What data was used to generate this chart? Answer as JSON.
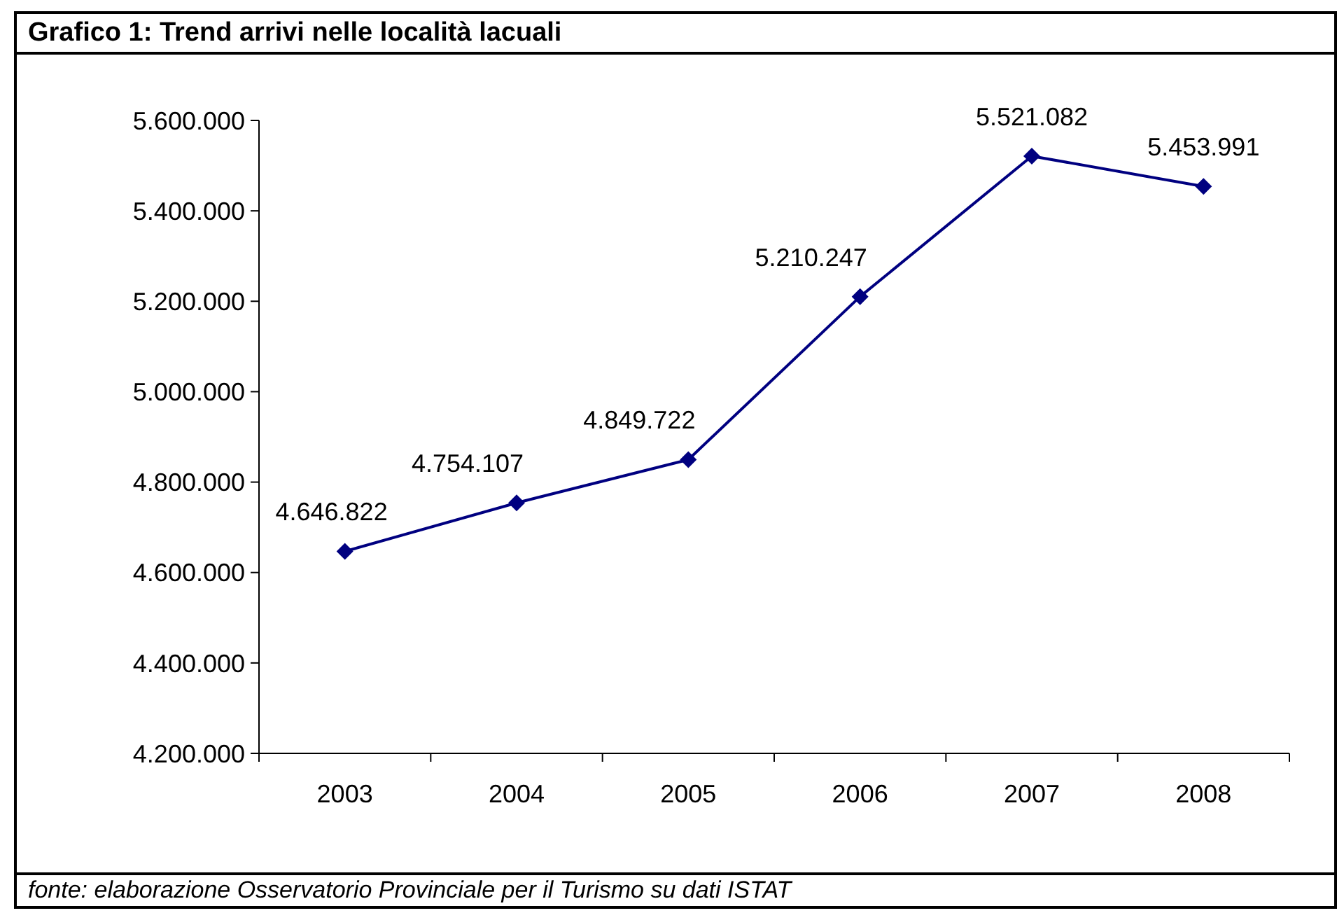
{
  "chart_data": {
    "type": "line",
    "title": "Grafico 1: Trend arrivi nelle località lacuali",
    "categories": [
      "2003",
      "2004",
      "2005",
      "2006",
      "2007",
      "2008"
    ],
    "series": [
      {
        "color": "#000080",
        "values": [
          4646822,
          4754107,
          4849722,
          5210247,
          5521082,
          5453991
        ],
        "value_labels": [
          "4.646.822",
          "4.754.107",
          "4.849.722",
          "5.210.247",
          "5.521.082",
          "5.453.991"
        ]
      }
    ],
    "ylim": [
      4200000,
      5600000
    ],
    "yticks": [
      {
        "value": 4200000,
        "label": "4.200.000"
      },
      {
        "value": 4400000,
        "label": "4.400.000"
      },
      {
        "value": 4600000,
        "label": "4.600.000"
      },
      {
        "value": 4800000,
        "label": "4.800.000"
      },
      {
        "value": 5000000,
        "label": "5.000.000"
      },
      {
        "value": 5200000,
        "label": "5.200.000"
      },
      {
        "value": 5400000,
        "label": "5.400.000"
      },
      {
        "value": 5600000,
        "label": "5.600.000"
      }
    ],
    "marker": "diamond",
    "line_style": "solid",
    "annotations": [
      "fonte: elaborazione Osservatorio Provinciale per il Turismo su dati ISTAT"
    ]
  }
}
